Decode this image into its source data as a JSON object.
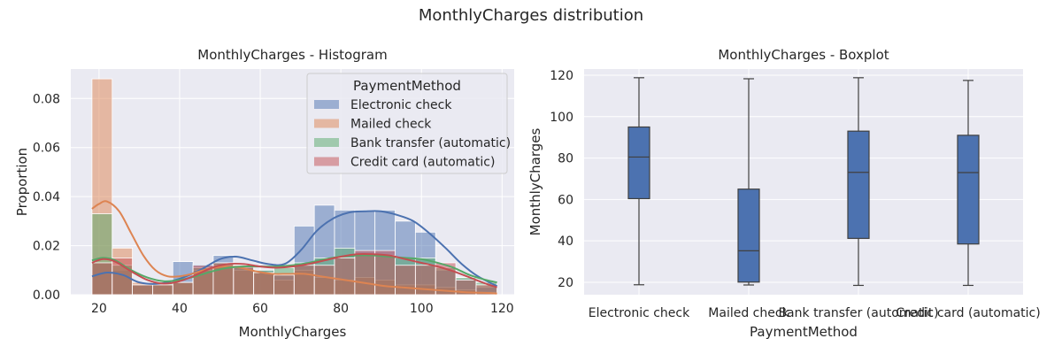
{
  "figure": {
    "title": "MonthlyCharges distribution"
  },
  "chart_data": [
    {
      "type": "bar",
      "subtype": "histogram-with-kde",
      "title": "MonthlyCharges - Histogram",
      "xlabel": "MonthlyCharges",
      "ylabel": "Proportion",
      "xlim": [
        13,
        123
      ],
      "ylim": [
        0,
        0.092
      ],
      "xticks": [
        20,
        40,
        60,
        80,
        100,
        120
      ],
      "yticks": [
        0.0,
        0.02,
        0.04,
        0.06,
        0.08
      ],
      "ytick_labels": [
        "0.00",
        "0.02",
        "0.04",
        "0.06",
        "0.08"
      ],
      "grid": true,
      "legend": {
        "title": "PaymentMethod",
        "placement": "top-right"
      },
      "bin_edges": [
        18.25,
        23.27,
        28.28,
        33.3,
        38.31,
        43.33,
        48.34,
        53.36,
        58.37,
        63.39,
        68.4,
        73.42,
        78.43,
        83.45,
        88.46,
        93.48,
        98.49,
        103.51,
        108.52,
        113.54,
        118.75
      ],
      "series": [
        {
          "name": "Electronic check",
          "color": "#4c72b0",
          "values": [
            0.013,
            0.01,
            0.004,
            0.004,
            0.0135,
            0.0125,
            0.016,
            0.0115,
            0.01,
            0.008,
            0.028,
            0.0365,
            0.0345,
            0.0345,
            0.0345,
            0.03,
            0.0255,
            0.01,
            0.0065,
            0.003
          ],
          "kde": [
            [
              18.25,
              0.0075
            ],
            [
              22,
              0.009
            ],
            [
              26,
              0.008
            ],
            [
              30,
              0.005
            ],
            [
              35,
              0.0045
            ],
            [
              40,
              0.0065
            ],
            [
              45,
              0.01
            ],
            [
              50,
              0.0145
            ],
            [
              54,
              0.0155
            ],
            [
              58,
              0.014
            ],
            [
              62,
              0.0125
            ],
            [
              66,
              0.0125
            ],
            [
              70,
              0.018
            ],
            [
              74,
              0.026
            ],
            [
              78,
              0.031
            ],
            [
              82,
              0.0335
            ],
            [
              86,
              0.034
            ],
            [
              90,
              0.034
            ],
            [
              94,
              0.0325
            ],
            [
              98,
              0.03
            ],
            [
              102,
              0.025
            ],
            [
              106,
              0.019
            ],
            [
              110,
              0.0125
            ],
            [
              114,
              0.0075
            ],
            [
              118.75,
              0.0035
            ]
          ]
        },
        {
          "name": "Mailed check",
          "color": "#dd8452",
          "values": [
            0.088,
            0.019,
            0.005,
            0.004,
            0.005,
            0.01,
            0.012,
            0.01,
            0.009,
            0.006,
            0.01,
            0.007,
            0.006,
            0.007,
            0.006,
            0.004,
            0.004,
            0.003,
            0.002,
            0.001
          ],
          "kde": [
            [
              18.25,
              0.035
            ],
            [
              20,
              0.037
            ],
            [
              22,
              0.038
            ],
            [
              25,
              0.034
            ],
            [
              28,
              0.025
            ],
            [
              31,
              0.016
            ],
            [
              34,
              0.01
            ],
            [
              37,
              0.0075
            ],
            [
              40,
              0.0075
            ],
            [
              43,
              0.0085
            ],
            [
              47,
              0.0105
            ],
            [
              51,
              0.0115
            ],
            [
              55,
              0.011
            ],
            [
              59,
              0.0095
            ],
            [
              63,
              0.0085
            ],
            [
              67,
              0.0085
            ],
            [
              71,
              0.0085
            ],
            [
              75,
              0.0075
            ],
            [
              79,
              0.0065
            ],
            [
              83,
              0.0055
            ],
            [
              87,
              0.0045
            ],
            [
              91,
              0.0035
            ],
            [
              95,
              0.003
            ],
            [
              99,
              0.0025
            ],
            [
              103,
              0.002
            ],
            [
              107,
              0.0015
            ],
            [
              111,
              0.001
            ],
            [
              115,
              0.0008
            ],
            [
              118.75,
              0.0005
            ]
          ]
        },
        {
          "name": "Bank transfer (automatic)",
          "color": "#55a868",
          "values": [
            0.033,
            0.012,
            0.004,
            0.005,
            0.005,
            0.011,
            0.013,
            0.011,
            0.01,
            0.011,
            0.013,
            0.015,
            0.019,
            0.016,
            0.016,
            0.015,
            0.015,
            0.011,
            0.007,
            0.005
          ],
          "kde": [
            [
              18.25,
              0.014
            ],
            [
              21,
              0.015
            ],
            [
              24,
              0.014
            ],
            [
              28,
              0.01
            ],
            [
              32,
              0.007
            ],
            [
              36,
              0.0055
            ],
            [
              40,
              0.006
            ],
            [
              44,
              0.0075
            ],
            [
              48,
              0.0095
            ],
            [
              52,
              0.011
            ],
            [
              56,
              0.0115
            ],
            [
              60,
              0.0115
            ],
            [
              64,
              0.0115
            ],
            [
              68,
              0.012
            ],
            [
              72,
              0.013
            ],
            [
              76,
              0.0145
            ],
            [
              80,
              0.0155
            ],
            [
              84,
              0.016
            ],
            [
              88,
              0.016
            ],
            [
              92,
              0.0155
            ],
            [
              96,
              0.015
            ],
            [
              100,
              0.0145
            ],
            [
              104,
              0.013
            ],
            [
              108,
              0.011
            ],
            [
              112,
              0.008
            ],
            [
              116,
              0.006
            ],
            [
              118.75,
              0.005
            ]
          ]
        },
        {
          "name": "Credit card (automatic)",
          "color": "#c44e52",
          "values": [
            0.013,
            0.015,
            0.004,
            0.004,
            0.005,
            0.012,
            0.013,
            0.012,
            0.009,
            0.008,
            0.012,
            0.012,
            0.015,
            0.018,
            0.018,
            0.012,
            0.012,
            0.013,
            0.006,
            0.004
          ],
          "kde": [
            [
              18.25,
              0.013
            ],
            [
              21,
              0.0145
            ],
            [
              24,
              0.0135
            ],
            [
              28,
              0.0095
            ],
            [
              32,
              0.006
            ],
            [
              36,
              0.0045
            ],
            [
              40,
              0.0055
            ],
            [
              44,
              0.008
            ],
            [
              48,
              0.011
            ],
            [
              52,
              0.0125
            ],
            [
              56,
              0.0125
            ],
            [
              60,
              0.0115
            ],
            [
              64,
              0.011
            ],
            [
              68,
              0.0115
            ],
            [
              72,
              0.0125
            ],
            [
              76,
              0.014
            ],
            [
              80,
              0.0155
            ],
            [
              84,
              0.0165
            ],
            [
              88,
              0.0165
            ],
            [
              92,
              0.016
            ],
            [
              96,
              0.0145
            ],
            [
              100,
              0.013
            ],
            [
              104,
              0.0115
            ],
            [
              108,
              0.0095
            ],
            [
              112,
              0.007
            ],
            [
              116,
              0.0045
            ],
            [
              118.75,
              0.003
            ]
          ]
        }
      ]
    },
    {
      "type": "boxplot",
      "title": "MonthlyCharges - Boxplot",
      "xlabel": "PaymentMethod",
      "ylabel": "MonthlyCharges",
      "ylim": [
        14,
        123
      ],
      "yticks": [
        20,
        40,
        60,
        80,
        100,
        120
      ],
      "grid": true,
      "color": "#4c72b0",
      "categories": [
        "Electronic check",
        "Mailed check",
        "Bank transfer (automatic)",
        "Credit card (automatic)"
      ],
      "boxes": [
        {
          "whisker_low": 18.8,
          "q1": 60.4,
          "median": 80.5,
          "q3": 95.0,
          "whisker_high": 118.8
        },
        {
          "whisker_low": 18.7,
          "q1": 20.1,
          "median": 35.2,
          "q3": 65.0,
          "whisker_high": 118.3
        },
        {
          "whisker_low": 18.5,
          "q1": 41.2,
          "median": 73.1,
          "q3": 93.0,
          "whisker_high": 118.8
        },
        {
          "whisker_low": 18.5,
          "q1": 38.5,
          "median": 73.0,
          "q3": 91.0,
          "whisker_high": 117.5
        }
      ]
    }
  ]
}
